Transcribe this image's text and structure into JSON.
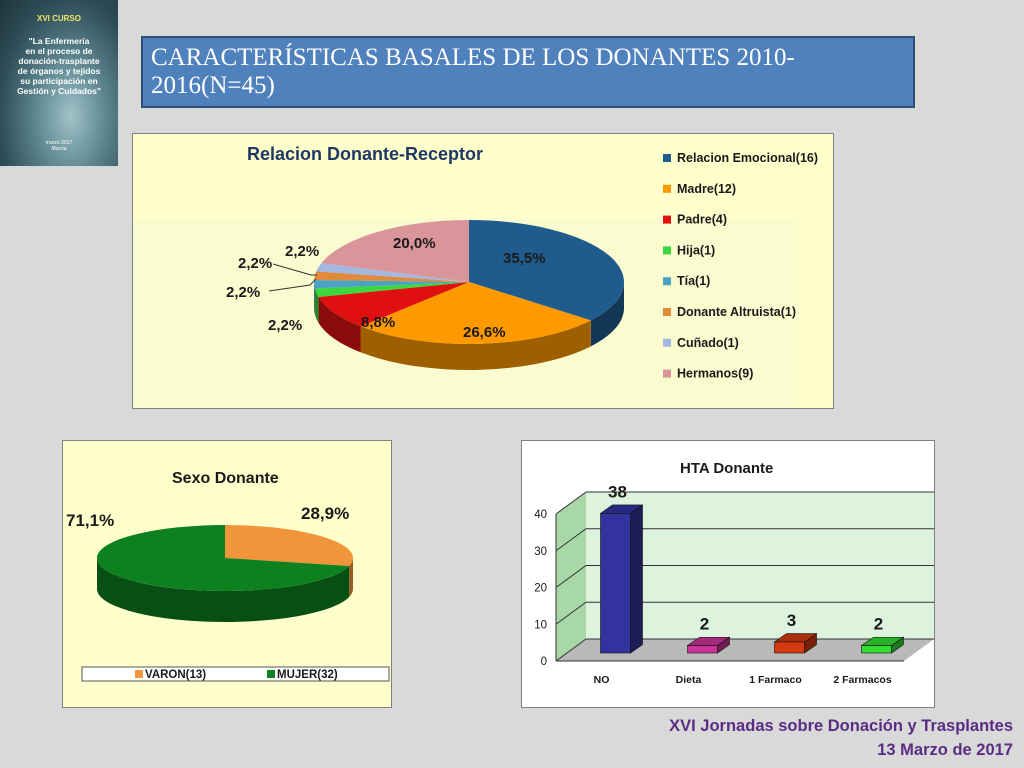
{
  "slide": {
    "title": "CARACTERÍSTICAS BASALES DE LOS DONANTES 2010-2016(N=45)",
    "footer_line1": "XVI Jornadas sobre Donación y Trasplantes",
    "footer_line2": "13 Marzo de 2017"
  },
  "cover": {
    "label": "XVI CURSO",
    "lines": [
      "\"La Enfermería",
      "en el proceso de",
      "donación-trasplante",
      "de órganos y tejidos",
      "su participación en",
      "Gestión y Cuidados\""
    ],
    "date_line1": "marzo 2017",
    "date_line2": "Murcia"
  },
  "colors": {
    "banner": "#4f81bd",
    "panel_bg": "#ffffcc",
    "footer_text": "#5b2c83"
  },
  "chart_data": [
    {
      "type": "pie",
      "title": "Relacion Donante-Receptor",
      "legend_position": "right",
      "slices": [
        {
          "name": "Relacion Emocional(16)",
          "value": 35.5,
          "label": "35,5%",
          "color": "#1f5b8c"
        },
        {
          "name": "Madre(12)",
          "value": 26.6,
          "label": "26,6%",
          "color": "#ff9900"
        },
        {
          "name": "Padre(4)",
          "value": 8.8,
          "label": "8,8%",
          "color": "#e01010"
        },
        {
          "name": "Hija(1)",
          "value": 2.2,
          "label": "2,2%",
          "color": "#3ed63e"
        },
        {
          "name": "Tía(1)",
          "value": 2.2,
          "label": "2,2%",
          "color": "#4aa2c4"
        },
        {
          "name": "Donante Altruista(1)",
          "value": 2.2,
          "label": "2,2%",
          "color": "#e08a3c"
        },
        {
          "name": "Cuñado(1)",
          "value": 2.2,
          "label": "2,2%",
          "color": "#a3b8e0"
        },
        {
          "name": "Hermanos(9)",
          "value": 20.0,
          "label": "20,0%",
          "color": "#d9959a"
        }
      ]
    },
    {
      "type": "pie",
      "title": "Sexo Donante",
      "legend_position": "bottom",
      "slices": [
        {
          "name": "VARON(13)",
          "value": 28.9,
          "label": "28,9%",
          "color": "#f0953a"
        },
        {
          "name": "MUJER(32)",
          "value": 71.1,
          "label": "71,1%",
          "color": "#0d8020"
        }
      ]
    },
    {
      "type": "bar",
      "title": "HTA Donante",
      "categories": [
        "NO",
        "Dieta",
        "1 Farmaco",
        "2 Farmacos"
      ],
      "values": [
        38,
        2,
        3,
        2
      ],
      "labels": [
        "38",
        "2",
        "3",
        "2"
      ],
      "colors": [
        "#33339f",
        "#cc3399",
        "#d63a10",
        "#33dd33"
      ],
      "ylim": [
        0,
        40
      ],
      "yticks": [
        0,
        10,
        20,
        30,
        40
      ],
      "grid": true
    }
  ]
}
